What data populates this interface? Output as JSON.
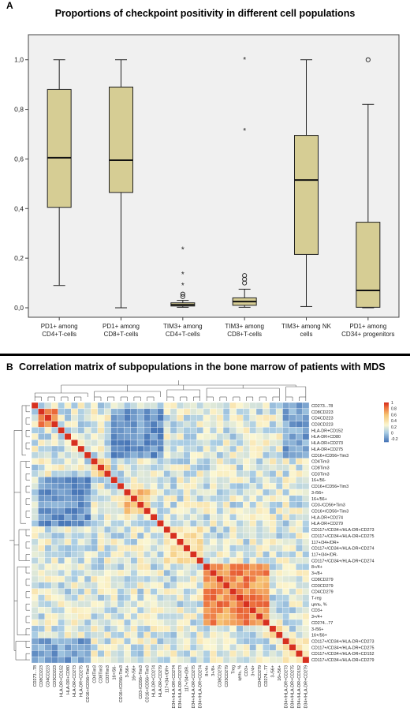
{
  "panel_a": {
    "letter": "A",
    "title": "Proportions of checkpoint positivity in different cell populations"
  },
  "panel_b": {
    "letter": "B",
    "title": "Correlation matrix of subpopulations in the bone marrow of patients with MDS"
  },
  "colors": {
    "box_fill": "#d6cd94",
    "plot_bg": "#f0f0f0",
    "neg_strong": "#4a78b8",
    "neutral": "#fbf7d2",
    "pos_strong": "#d7301f"
  },
  "chart_data": [
    {
      "type": "box",
      "title": "Proportions of checkpoint positivity in different cell populations",
      "ylim": [
        0,
        1.05
      ],
      "yticks": [
        "0,0",
        "0,2",
        "0,4",
        "0,6",
        "0,8",
        "1,0"
      ],
      "ytick_values": [
        0,
        0.2,
        0.4,
        0.6,
        0.8,
        1.0
      ],
      "grid": false,
      "categories": [
        [
          "PD1+ among",
          "CD4+T-cells"
        ],
        [
          "PD1+ among",
          "CD8+T-cells"
        ],
        [
          "TIM3+ among",
          "CD4+T-cells"
        ],
        [
          "TIM3+ among",
          "CD8+T-cells"
        ],
        [
          "TIM3+ among NK",
          "cells"
        ],
        [
          "PD1+ among",
          "CD34+ progenitors"
        ]
      ],
      "boxes": [
        {
          "min": 0.09,
          "q1": 0.405,
          "median": 0.605,
          "q3": 0.88,
          "max": 1.0,
          "outliers": [],
          "extremes": []
        },
        {
          "min": 0.0,
          "q1": 0.465,
          "median": 0.595,
          "q3": 0.89,
          "max": 1.0,
          "outliers": [],
          "extremes": []
        },
        {
          "min": 0.002,
          "q1": 0.007,
          "median": 0.012,
          "q3": 0.02,
          "max": 0.03,
          "outliers": [
            0.045,
            0.055
          ],
          "extremes": [
            0.09,
            0.135,
            0.235
          ]
        },
        {
          "min": 0.002,
          "q1": 0.01,
          "median": 0.025,
          "q3": 0.04,
          "max": 0.075,
          "outliers": [
            0.1,
            0.115,
            0.13
          ],
          "extremes": [
            0.715,
            1.0
          ]
        },
        {
          "min": 0.005,
          "q1": 0.215,
          "median": 0.515,
          "q3": 0.695,
          "max": 1.0,
          "outliers": [],
          "extremes": []
        },
        {
          "min": 0.0,
          "q1": 0.002,
          "median": 0.07,
          "q3": 0.345,
          "max": 0.82,
          "outliers": [
            1.0
          ],
          "extremes": []
        }
      ]
    },
    {
      "type": "heatmap",
      "title": "Correlation matrix of subpopulations in the bone marrow of patients with MDS",
      "colorbar": {
        "ticks": [
          "1",
          "0.8",
          "0.6",
          "0.4",
          "0.2",
          "0",
          "-0.2"
        ],
        "range": [
          -0.3,
          1
        ]
      },
      "row_labels": [
        "CD273...78",
        "CD8CD223",
        "CD4CD223",
        "CD3CD223",
        "HLA-DR+CD152",
        "HLA-DR+CD80",
        "HLA-DR+CD273",
        "HLA-DR+CD275",
        "CD16+/CD56+Tim3",
        "CD4Tim3",
        "CD8Tim3",
        "CD3Tim3",
        "16+/56-",
        "CD16+/CD56+Tim3",
        "3-/56+",
        "16+/56+",
        "CD3-/CD56+Tim3",
        "CD16+/CD56+Tim3",
        "HLA-DR+CD274",
        "HLA-DR+CD279",
        "CD117+/CD34+/HLA-DR+CD273",
        "CD117+/CD34+/HLA-DR+CD275",
        "117+/34+/DR+",
        "CD117+/CD34+/HLA-DR+CD274",
        "117+/34+/DR-",
        "CD117+/CD34+/HLA-DR+CD274",
        "8+/4+",
        "3+/8+",
        "CD8CD279",
        "CD3CD279",
        "CD4CD279",
        "T-reg",
        "цель, %",
        "CD3+",
        "3+/4+",
        "CD274...77",
        "3-/56+",
        "16+/56+",
        "CD117+/CD34+/HLA-DR+CD273",
        "CD117+/CD34+/HLA-DR+CD275",
        "CD117+/CD34+/HLA-DR+CD152",
        "CD117+/CD34+/HLA-DR+CD279"
      ],
      "col_labels": [
        "CD273...78",
        "CD8CD223",
        "CD4CD223",
        "CD3CD223",
        "HLA-DR+CD152",
        "HLA-DR+CD80",
        "HLA-DR+CD273",
        "HLA-DR+CD275",
        "CD16+/CD56+Tim3",
        "CD4Tim3",
        "CD8Tim3",
        "CD3Tim3",
        "16+/56-",
        "CD16+/CD56+Tim3",
        "3-/56+",
        "16+/56+",
        "CD3-/CD56+Tim3",
        "CD16+/CD56+Tim3",
        "HLA-DR+CD274",
        "HLA-DR+CD279",
        "117+/34+/DR+",
        "CD117+/CD34+/HLA-DR+CD274",
        "CD117+/CD34+/HLA-DR+CD273",
        "117+/34+/DR-",
        "CD117+/CD34+/HLA-DR+CD275",
        "CD117+/CD34+/HLA-DR+CD274",
        "8+/4+",
        "3+/8+",
        "CD8CD279",
        "CD3CD279",
        "Treg",
        "цель, %",
        "CD3+",
        "3+/4+",
        "CD4CD279",
        "CD274...77",
        "3-/56+",
        "16+/56+",
        "CD117+/CD34+/HLA-DR+CD273",
        "CD117+/CD34+/HLA-DR+CD275",
        "CD117+/CD34+/HLA-DR+CD152",
        "CD117+/CD34+/HLA-DR+CD279"
      ],
      "blocks": [
        {
          "from": 1,
          "to": 3,
          "value": 0.85
        },
        {
          "from": 9,
          "to": 11,
          "value": 0.5
        },
        {
          "from": 14,
          "to": 17,
          "value": 0.55
        },
        {
          "from": 20,
          "to": 25,
          "value": 0.35
        },
        {
          "from": 26,
          "to": 35,
          "value": 0.75
        },
        {
          "from": 36,
          "to": 37,
          "value": 0.5
        },
        {
          "from": 38,
          "to": 41,
          "value": 0.3
        }
      ],
      "negative_regions": [
        {
          "rows": [
            1,
            8
          ],
          "cols": [
            12,
            19
          ],
          "value": -0.2
        },
        {
          "rows": [
            12,
            19
          ],
          "cols": [
            1,
            8
          ],
          "value": -0.2
        },
        {
          "rows": [
            0,
            8
          ],
          "cols": [
            38,
            41
          ],
          "value": -0.15
        },
        {
          "rows": [
            38,
            41
          ],
          "cols": [
            0,
            8
          ],
          "value": -0.15
        }
      ]
    }
  ]
}
